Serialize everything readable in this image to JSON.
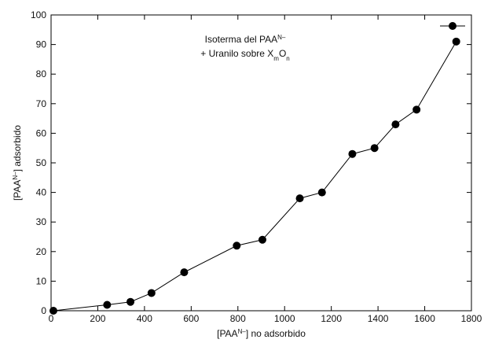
{
  "chart_data": {
    "type": "line",
    "annotation": [
      [
        {
          "text": "Isoterma del PAA"
        },
        {
          "sup": "N–"
        }
      ],
      [
        {
          "text": "+ Uranilo sobre X"
        },
        {
          "sub": "m"
        },
        {
          "text": "O"
        },
        {
          "sub": "n"
        }
      ]
    ],
    "x_label": [
      {
        "text": "[PAA"
      },
      {
        "sup": "N–"
      },
      {
        "text": "] no adsorbido"
      }
    ],
    "y_label": [
      {
        "text": "[PAA"
      },
      {
        "sup": "N–"
      },
      {
        "text": "] adsorbido"
      }
    ],
    "x": [
      10,
      240,
      340,
      430,
      570,
      795,
      905,
      1065,
      1160,
      1290,
      1385,
      1475,
      1565,
      1735
    ],
    "series": [
      {
        "color": "#000000",
        "values": [
          0,
          2,
          3,
          6,
          13,
          22,
          24,
          38,
          40,
          53,
          55,
          63,
          68,
          91
        ]
      }
    ],
    "xlim": [
      0,
      1800
    ],
    "xticks": [
      0,
      200,
      400,
      600,
      800,
      1000,
      1200,
      1400,
      1600,
      1800
    ],
    "ylim": [
      0,
      100
    ],
    "yticks": [
      0,
      10,
      20,
      30,
      40,
      50,
      60,
      70,
      80,
      90,
      100
    ],
    "legend": "upper right"
  }
}
